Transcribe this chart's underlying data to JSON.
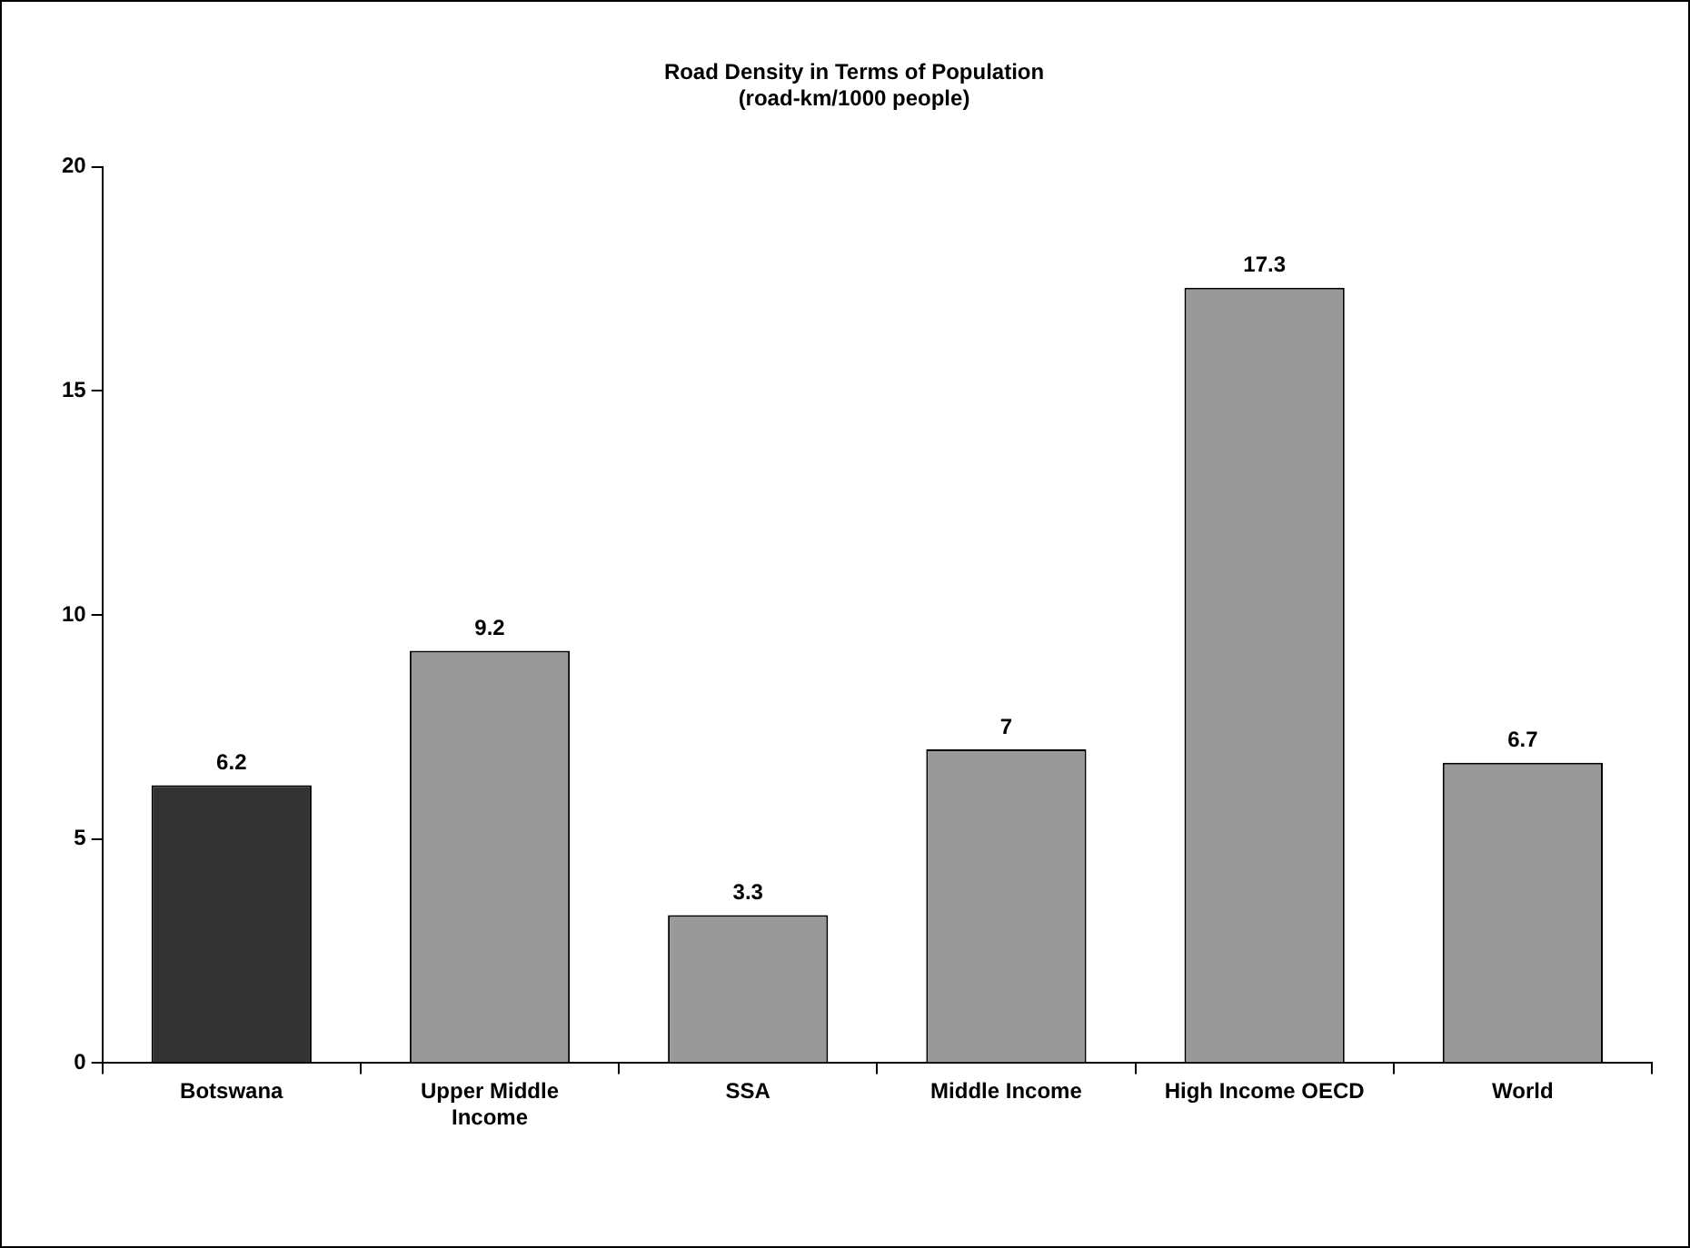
{
  "chart_data": {
    "type": "bar",
    "title": "Road Density in Terms of Population",
    "subtitle": "(road-km/1000 people)",
    "categories": [
      "Botswana",
      "Upper Middle Income",
      "SSA",
      "Middle Income",
      "High Income OECD",
      "World"
    ],
    "values": [
      6.2,
      9.2,
      3.3,
      7,
      17.3,
      6.7
    ],
    "colors": [
      "#333333",
      "#999999",
      "#999999",
      "#999999",
      "#999999",
      "#999999"
    ],
    "ylim": [
      0,
      20
    ],
    "yticks": [
      0,
      5,
      10,
      15,
      20
    ],
    "grid": false,
    "data_labels": true,
    "legend": false
  }
}
